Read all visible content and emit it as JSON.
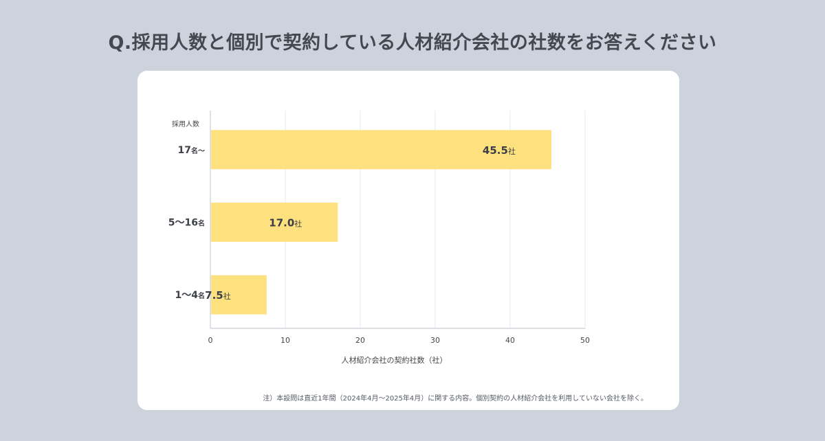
{
  "title": "Q.採用人数と個別で契約している人材紹介会社の社数をお答えください",
  "note": "注）本設問は直近1年間（2024年4月～2025年4月）に関する内容。個別契約の人材紹介会社を利用していない会社を除く。",
  "colors": {
    "bar": "#fde17f",
    "grid": "#e6e9ef",
    "axis": "#c9ced6"
  },
  "chart_data": {
    "type": "bar",
    "orientation": "horizontal",
    "title": "",
    "ylabel": "採用人数",
    "xlabel": "人材紹介会社の契約社数（社）",
    "categories": [
      "17名～",
      "5～16名",
      "1～4名"
    ],
    "category_parts": [
      {
        "main": "17",
        "unit": "名～"
      },
      {
        "main": "5～16",
        "unit": "名"
      },
      {
        "main": "1～4",
        "unit": "名"
      }
    ],
    "values": [
      45.5,
      17.0,
      7.5
    ],
    "value_labels": [
      "45.5",
      "17.0",
      "7.5"
    ],
    "value_unit": "社",
    "xlim": [
      0,
      50
    ],
    "xticks": [
      "0",
      "10",
      "20",
      "30",
      "40",
      "50"
    ],
    "grid": true,
    "legend": "none"
  }
}
